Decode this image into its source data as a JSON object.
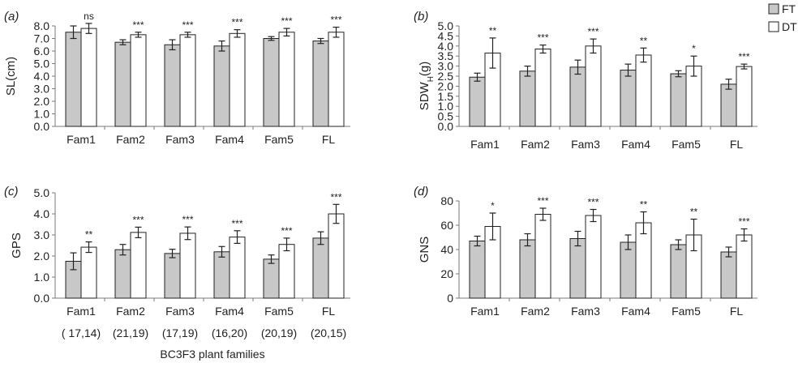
{
  "colors": {
    "ft": "#c8c8c8",
    "dt": "#ffffff",
    "stroke": "#222222",
    "axis": "#7a7a7a"
  },
  "legend": {
    "ft_label": "FT",
    "dt_label": "DT",
    "placement": "top-right"
  },
  "xaxis_label": "BC3F3 plant families",
  "sample_sizes": [
    "( 17,14)",
    "(21,19)",
    "(17,19)",
    "(16,20)",
    "(20,19)",
    "(20,15)"
  ],
  "chart_data": [
    {
      "type": "bar",
      "panel": "(a)",
      "ylabel": "SL(cm)",
      "ylim": [
        0,
        8
      ],
      "yticks": [
        "0.0",
        "1.0",
        "2.0",
        "3.0",
        "4.0",
        "5.0",
        "6.0",
        "7.0",
        "8.0"
      ],
      "categories": [
        "Fam1",
        "Fam2",
        "Fam3",
        "Fam4",
        "Fam5",
        "FL"
      ],
      "series": [
        {
          "name": "FT",
          "values": [
            7.5,
            6.7,
            6.5,
            6.4,
            7.0,
            6.8
          ],
          "errors": [
            0.5,
            0.2,
            0.4,
            0.4,
            0.15,
            0.2
          ]
        },
        {
          "name": "DT",
          "values": [
            7.8,
            7.3,
            7.3,
            7.4,
            7.5,
            7.5
          ],
          "errors": [
            0.4,
            0.2,
            0.2,
            0.3,
            0.3,
            0.4
          ]
        }
      ],
      "significance": [
        "ns",
        "***",
        "***",
        "***",
        "***",
        "***"
      ]
    },
    {
      "type": "bar",
      "panel": "(b)",
      "ylabel": "SDW",
      "ylabel_sub": "H",
      "ylabel_suffix": "(g)",
      "ylim": [
        0,
        5
      ],
      "yticks": [
        "0.0",
        "0.5",
        "1.0",
        "1.5",
        "2.0",
        "2.5",
        "3.0",
        "3.5",
        "4.0",
        "4.5",
        "5.0"
      ],
      "categories": [
        "Fam1",
        "Fam2",
        "Fam3",
        "Fam4",
        "Fam5",
        "FL"
      ],
      "series": [
        {
          "name": "FT",
          "values": [
            2.45,
            2.75,
            2.95,
            2.8,
            2.62,
            2.1
          ],
          "errors": [
            0.2,
            0.25,
            0.35,
            0.3,
            0.15,
            0.25
          ]
        },
        {
          "name": "DT",
          "values": [
            3.65,
            3.85,
            4.0,
            3.55,
            3.0,
            2.98
          ],
          "errors": [
            0.75,
            0.2,
            0.35,
            0.35,
            0.5,
            0.12
          ]
        }
      ],
      "significance": [
        "**",
        "***",
        "***",
        "**",
        "*",
        "***"
      ]
    },
    {
      "type": "bar",
      "panel": "(c)",
      "ylabel": "GPS",
      "ylim": [
        0,
        5
      ],
      "yticks": [
        "0.0",
        "1.0",
        "2.0",
        "3.0",
        "4.0",
        "5.0"
      ],
      "categories": [
        "Fam1",
        "Fam2",
        "Fam3",
        "Fam4",
        "Fam5",
        "FL"
      ],
      "series": [
        {
          "name": "FT",
          "values": [
            1.75,
            2.3,
            2.12,
            2.2,
            1.85,
            2.85
          ],
          "errors": [
            0.4,
            0.25,
            0.2,
            0.25,
            0.2,
            0.3
          ]
        },
        {
          "name": "DT",
          "values": [
            2.42,
            3.12,
            3.08,
            2.9,
            2.55,
            4.0
          ],
          "errors": [
            0.25,
            0.25,
            0.3,
            0.3,
            0.3,
            0.45
          ]
        }
      ],
      "significance": [
        "**",
        "***",
        "***",
        "***",
        "***",
        "***"
      ]
    },
    {
      "type": "bar",
      "panel": "(d)",
      "ylabel": "GNS",
      "ylim": [
        0,
        80
      ],
      "yticks": [
        "0",
        "20",
        "40",
        "60",
        "80"
      ],
      "categories": [
        "Fam1",
        "Fam2",
        "Fam3",
        "Fam4",
        "Fam5",
        "FL"
      ],
      "series": [
        {
          "name": "FT",
          "values": [
            47,
            48,
            49,
            46,
            44,
            38
          ],
          "errors": [
            4,
            5,
            6,
            6,
            4,
            4
          ]
        },
        {
          "name": "DT",
          "values": [
            59,
            69,
            68,
            62,
            52,
            52
          ],
          "errors": [
            11,
            5,
            5,
            9,
            13,
            5
          ]
        }
      ],
      "significance": [
        "*",
        "***",
        "***",
        "**",
        "**",
        "***"
      ]
    }
  ]
}
